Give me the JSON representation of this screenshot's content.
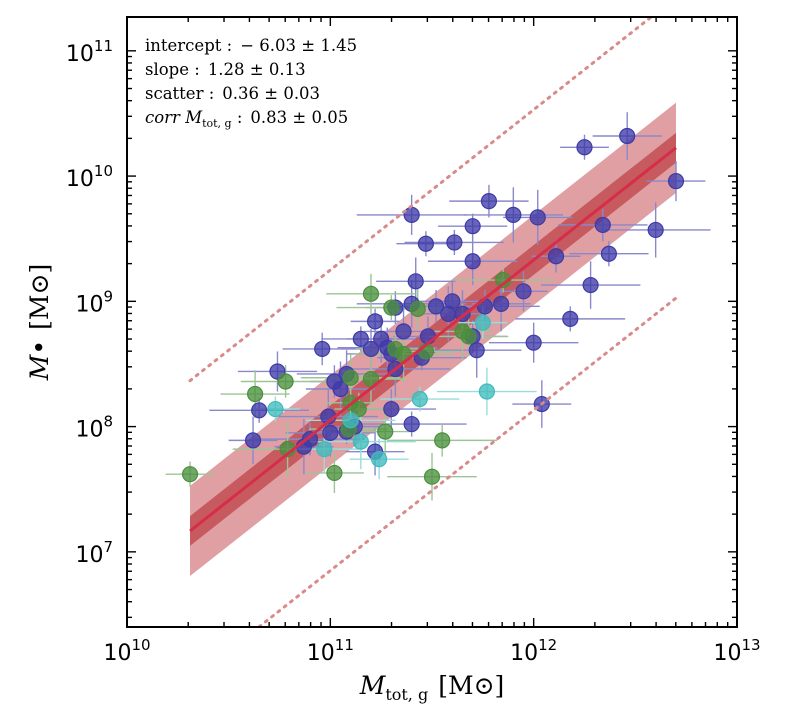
{
  "chart_data": {
    "type": "scatter",
    "title": "",
    "xlabel": {
      "main": "M",
      "sub": "tot, g",
      "unit": "[M⊙]"
    },
    "ylabel": {
      "main": "M•",
      "unit": "[M⊙]"
    },
    "xscale": "log",
    "yscale": "log",
    "xlim": [
      10,
      13
    ],
    "ylim": [
      6.4,
      11.27
    ],
    "xticks": [
      {
        "exp": 10,
        "base": "10",
        "power": "10"
      },
      {
        "exp": 11,
        "base": "10",
        "power": "11"
      },
      {
        "exp": 12,
        "base": "10",
        "power": "12"
      },
      {
        "exp": 13,
        "base": "10",
        "power": "13"
      }
    ],
    "yticks": [
      {
        "exp": 7,
        "base": "10",
        "power": "7"
      },
      {
        "exp": 8,
        "base": "10",
        "power": "8"
      },
      {
        "exp": 9,
        "base": "10",
        "power": "9"
      },
      {
        "exp": 10,
        "base": "10",
        "power": "10"
      },
      {
        "exp": 11,
        "base": "10",
        "power": "11"
      }
    ],
    "annotations": [
      {
        "label": "intercept :",
        "value": "− 6.03 ± 1.45"
      },
      {
        "label": "slope :",
        "value": "1.28 ± 0.13"
      },
      {
        "label": "scatter :",
        "value": "0.36 ± 0.03"
      },
      {
        "label": "corr M",
        "label_sub": "tot, g",
        "label_tail": " :",
        "value": "0.83 ± 0.05"
      }
    ],
    "fit": {
      "intercept": -6.03,
      "slope": 1.28,
      "scatter": 0.36,
      "x_range": [
        10.31,
        12.7
      ],
      "line_color": "#d62d4a",
      "inner_band_color": "#c65a5e",
      "outer_band_color": "#e0a0a3",
      "dotted_color": "#d98a8a"
    },
    "series": [
      {
        "name": "blue",
        "color": "#3e3aa8",
        "error_color": "#8a88cc",
        "points": [
          [
            12.25,
            10.23
          ],
          [
            12.46,
            10.32
          ],
          [
            12.34,
            9.61
          ],
          [
            12.6,
            9.57
          ],
          [
            12.7,
            9.96
          ],
          [
            12.37,
            9.38
          ],
          [
            12.28,
            9.13
          ],
          [
            12.11,
            9.36
          ],
          [
            12.02,
            9.67
          ],
          [
            12.0,
            8.67
          ],
          [
            12.18,
            8.86
          ],
          [
            12.04,
            8.18
          ],
          [
            11.78,
            9.8
          ],
          [
            11.9,
            9.69
          ],
          [
            11.95,
            9.08
          ],
          [
            11.7,
            9.6
          ],
          [
            11.7,
            9.32
          ],
          [
            11.76,
            8.96
          ],
          [
            11.84,
            8.98
          ],
          [
            11.6,
            9.0
          ],
          [
            11.61,
            9.47
          ],
          [
            11.65,
            8.9
          ],
          [
            11.7,
            8.72
          ],
          [
            11.72,
            8.61
          ],
          [
            11.4,
            9.69
          ],
          [
            11.47,
            9.46
          ],
          [
            11.42,
            9.16
          ],
          [
            11.52,
            8.96
          ],
          [
            11.58,
            8.9
          ],
          [
            11.48,
            8.72
          ],
          [
            11.45,
            8.55
          ],
          [
            11.4,
            8.98
          ],
          [
            11.32,
            8.95
          ],
          [
            11.36,
            8.76
          ],
          [
            11.28,
            8.63
          ],
          [
            11.22,
            8.84
          ],
          [
            11.25,
            8.7
          ],
          [
            11.3,
            8.58
          ],
          [
            11.32,
            8.46
          ],
          [
            11.2,
            8.62
          ],
          [
            11.15,
            8.7
          ],
          [
            11.08,
            8.42
          ],
          [
            11.02,
            8.36
          ],
          [
            11.05,
            8.3
          ],
          [
            11.3,
            8.14
          ],
          [
            11.4,
            8.02
          ],
          [
            11.22,
            7.8
          ],
          [
            10.96,
            8.62
          ],
          [
            10.99,
            8.08
          ],
          [
            11.12,
            8.0
          ],
          [
            11.08,
            7.96
          ],
          [
            11.0,
            7.95
          ],
          [
            10.9,
            7.9
          ],
          [
            10.87,
            7.84
          ],
          [
            10.74,
            8.44
          ],
          [
            10.65,
            8.13
          ],
          [
            10.62,
            7.89
          ]
        ]
      },
      {
        "name": "green",
        "color": "#4a8f3c",
        "error_color": "#9cc494",
        "points": [
          [
            10.31,
            7.62
          ],
          [
            10.63,
            8.26
          ],
          [
            10.78,
            8.36
          ],
          [
            10.79,
            7.82
          ],
          [
            11.02,
            7.63
          ],
          [
            11.09,
            7.98
          ],
          [
            11.1,
            8.39
          ],
          [
            11.14,
            8.14
          ],
          [
            11.2,
            8.38
          ],
          [
            11.2,
            9.06
          ],
          [
            11.3,
            8.95
          ],
          [
            11.27,
            7.96
          ],
          [
            11.32,
            8.62
          ],
          [
            11.36,
            8.58
          ],
          [
            11.43,
            8.94
          ],
          [
            11.47,
            8.6
          ],
          [
            11.5,
            7.6
          ],
          [
            11.55,
            7.89
          ],
          [
            11.65,
            8.76
          ],
          [
            11.68,
            8.72
          ],
          [
            11.85,
            9.17
          ],
          [
            11.1,
            8.19
          ]
        ]
      },
      {
        "name": "cyan",
        "color": "#3fbbbc",
        "error_color": "#9adcdc",
        "points": [
          [
            10.73,
            8.14
          ],
          [
            10.97,
            7.82
          ],
          [
            11.1,
            8.05
          ],
          [
            11.15,
            7.88
          ],
          [
            11.24,
            7.74
          ],
          [
            11.44,
            8.22
          ],
          [
            11.77,
            8.28
          ],
          [
            11.75,
            8.83
          ]
        ]
      }
    ]
  }
}
